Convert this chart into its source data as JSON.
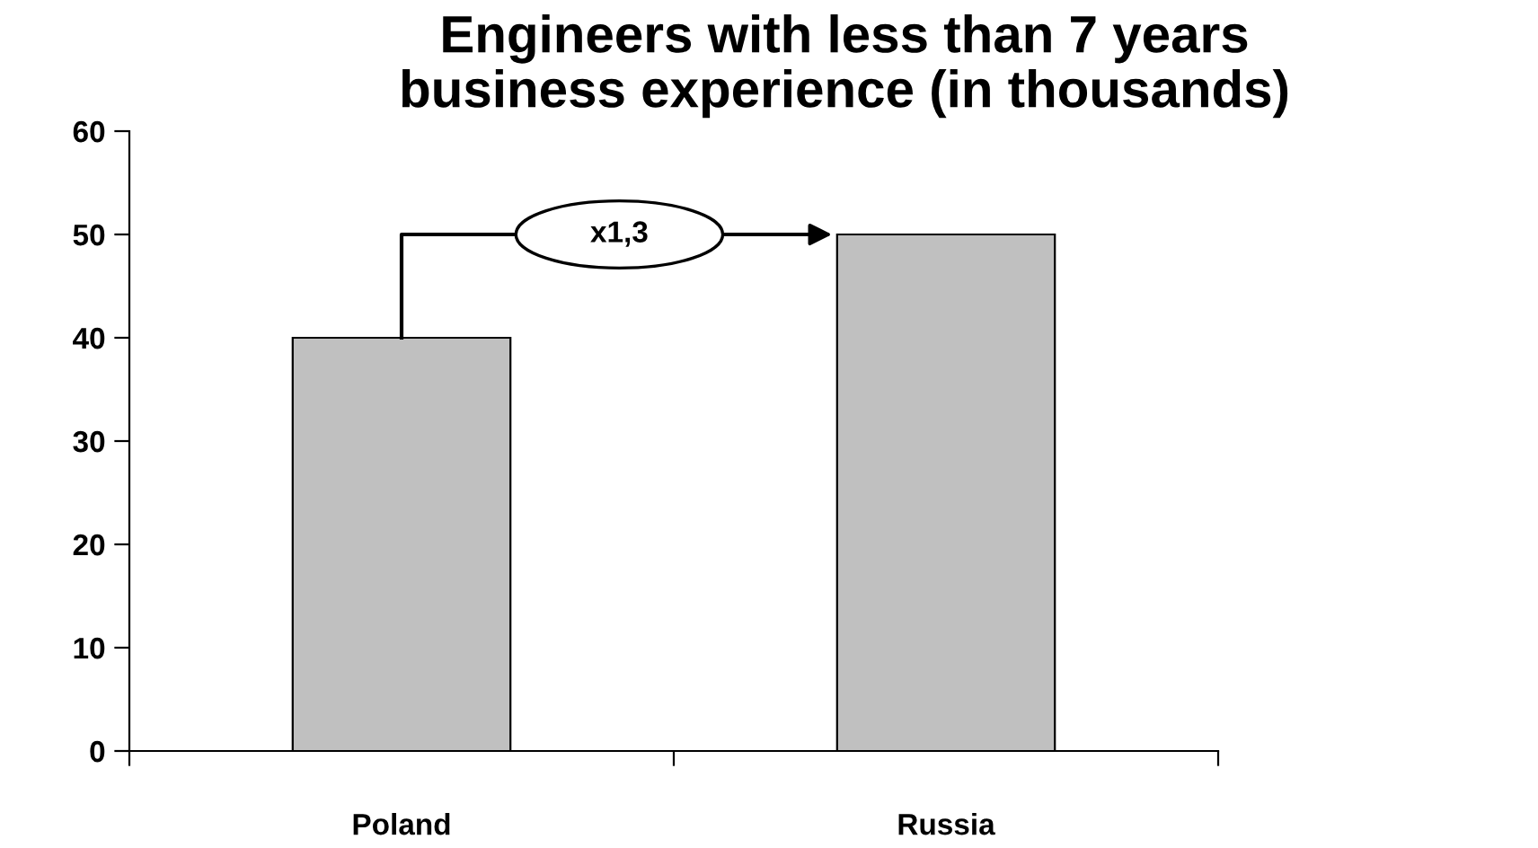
{
  "chart_data": {
    "type": "bar",
    "title": "Engineers with less than 7 years\nbusiness experience (in thousands)",
    "categories": [
      "Poland",
      "Russia"
    ],
    "values": [
      40,
      50
    ],
    "color": "#c0c0c0",
    "ylim": [
      0,
      60
    ],
    "yticks": [
      0,
      10,
      20,
      30,
      40,
      50,
      60
    ],
    "grid": false,
    "annotations": [
      "x1,3"
    ]
  }
}
